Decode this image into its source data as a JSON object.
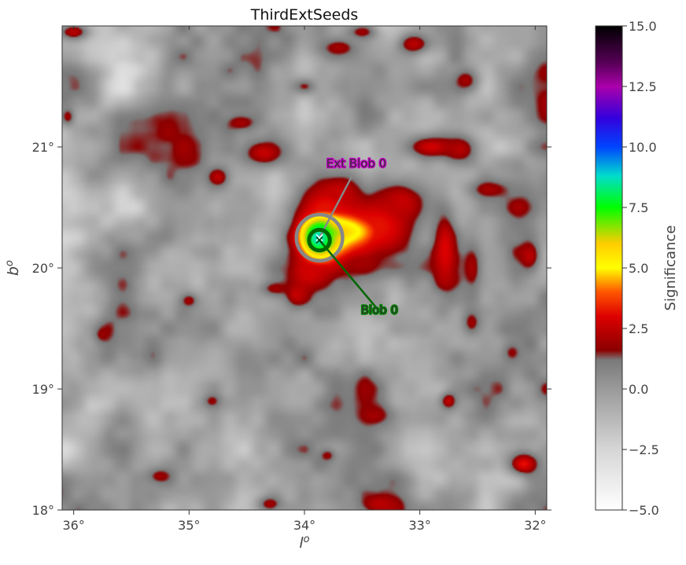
{
  "chart_data": {
    "type": "heatmap",
    "title": "ThirdExtSeeds",
    "xlabel": "l",
    "xlabel_sup": "o",
    "ylabel": "b",
    "ylabel_sup": "o",
    "x_direction": "decreasing",
    "xlim": [
      36.1,
      31.9
    ],
    "ylim": [
      18.0,
      22.0
    ],
    "x_ticks": [
      {
        "value": 36,
        "label": "36°"
      },
      {
        "value": 35,
        "label": "35°"
      },
      {
        "value": 34,
        "label": "34°"
      },
      {
        "value": 33,
        "label": "33°"
      },
      {
        "value": 32,
        "label": "32°"
      }
    ],
    "y_ticks": [
      {
        "value": 18,
        "label": "18°"
      },
      {
        "value": 19,
        "label": "19°"
      },
      {
        "value": 20,
        "label": "20°"
      },
      {
        "value": 21,
        "label": "21°"
      }
    ],
    "colorbar": {
      "label": "Significance",
      "range": [
        -5.0,
        15.0
      ],
      "ticks": [
        {
          "value": 15.0,
          "label": "15.0"
        },
        {
          "value": 12.5,
          "label": "12.5"
        },
        {
          "value": 10.0,
          "label": "10.0"
        },
        {
          "value": 7.5,
          "label": "7.5"
        },
        {
          "value": 5.0,
          "label": "5.0"
        },
        {
          "value": 2.5,
          "label": "2.5"
        },
        {
          "value": 0.0,
          "label": "0.0"
        },
        {
          "value": -2.5,
          "label": "−2.5"
        },
        {
          "value": -5.0,
          "label": "−5.0"
        }
      ],
      "colormap": [
        {
          "value": -5.0,
          "color": "#ffffff"
        },
        {
          "value": -2.5,
          "color": "#d6d6d6"
        },
        {
          "value": 0.0,
          "color": "#9a9a9a"
        },
        {
          "value": 1.2,
          "color": "#7a7a7a"
        },
        {
          "value": 1.6,
          "color": "#8b0000"
        },
        {
          "value": 3.0,
          "color": "#dd0000"
        },
        {
          "value": 4.0,
          "color": "#ff5500"
        },
        {
          "value": 5.0,
          "color": "#ffff00"
        },
        {
          "value": 6.0,
          "color": "#ffcc00"
        },
        {
          "value": 7.5,
          "color": "#00ff00"
        },
        {
          "value": 8.8,
          "color": "#00ddcc"
        },
        {
          "value": 10.0,
          "color": "#0044ff"
        },
        {
          "value": 11.2,
          "color": "#3300dd"
        },
        {
          "value": 12.5,
          "color": "#aa00aa"
        },
        {
          "value": 13.5,
          "color": "#550055"
        },
        {
          "value": 15.0,
          "color": "#000000"
        }
      ]
    },
    "sources": [
      {
        "name": "Ext Blob 0",
        "l": 33.87,
        "b": 20.25,
        "radius_deg": 0.2,
        "label_l": 33.55,
        "label_b": 20.83,
        "ring_color": "#888888",
        "label_color": "#cc00cc"
      },
      {
        "name": "Blob 0",
        "l": 33.87,
        "b": 20.23,
        "radius_deg": 0.09,
        "label_l": 33.35,
        "label_b": 19.62,
        "ring_color": "#006600",
        "label_color": "#008800"
      }
    ],
    "hotspots": [
      {
        "l": 33.68,
        "b": 20.3,
        "peak": 5.8,
        "sl": 0.27,
        "sb": 0.12
      },
      {
        "l": 33.8,
        "b": 20.28,
        "peak": 5.2,
        "sl": 0.16,
        "sb": 0.15
      },
      {
        "l": 33.88,
        "b": 20.25,
        "peak": 8.8,
        "sl": 0.1,
        "sb": 0.11
      },
      {
        "l": 33.82,
        "b": 20.5,
        "peak": 3.2,
        "sl": 0.2,
        "sb": 0.17
      },
      {
        "l": 33.35,
        "b": 20.35,
        "peak": 3.2,
        "sl": 0.22,
        "sb": 0.18
      },
      {
        "l": 33.15,
        "b": 20.55,
        "peak": 2.6,
        "sl": 0.15,
        "sb": 0.12
      },
      {
        "l": 33.7,
        "b": 20.62,
        "peak": 2.6,
        "sl": 0.15,
        "sb": 0.12
      },
      {
        "l": 33.95,
        "b": 19.95,
        "peak": 2.8,
        "sl": 0.14,
        "sb": 0.1
      },
      {
        "l": 34.07,
        "b": 19.78,
        "peak": 2.6,
        "sl": 0.07,
        "sb": 0.07
      },
      {
        "l": 33.5,
        "b": 20.05,
        "peak": 2.0,
        "sl": 0.12,
        "sb": 0.1
      },
      {
        "l": 32.9,
        "b": 21.0,
        "peak": 2.8,
        "sl": 0.18,
        "sb": 0.08
      },
      {
        "l": 32.65,
        "b": 20.98,
        "peak": 2.3,
        "sl": 0.1,
        "sb": 0.08
      },
      {
        "l": 32.4,
        "b": 20.65,
        "peak": 2.0,
        "sl": 0.13,
        "sb": 0.06
      },
      {
        "l": 32.78,
        "b": 20.15,
        "peak": 3.0,
        "sl": 0.08,
        "sb": 0.25
      },
      {
        "l": 32.55,
        "b": 20.0,
        "peak": 2.0,
        "sl": 0.06,
        "sb": 0.15
      },
      {
        "l": 34.35,
        "b": 20.95,
        "peak": 2.6,
        "sl": 0.13,
        "sb": 0.08
      },
      {
        "l": 34.75,
        "b": 20.75,
        "peak": 2.4,
        "sl": 0.08,
        "sb": 0.07
      },
      {
        "l": 34.55,
        "b": 21.2,
        "peak": 2.0,
        "sl": 0.1,
        "sb": 0.05
      },
      {
        "l": 33.05,
        "b": 21.85,
        "peak": 2.4,
        "sl": 0.1,
        "sb": 0.06
      },
      {
        "l": 33.7,
        "b": 21.82,
        "peak": 2.0,
        "sl": 0.12,
        "sb": 0.06
      },
      {
        "l": 33.5,
        "b": 21.95,
        "peak": 1.9,
        "sl": 0.1,
        "sb": 0.05
      },
      {
        "l": 32.6,
        "b": 21.55,
        "peak": 2.0,
        "sl": 0.08,
        "sb": 0.07
      },
      {
        "l": 32.05,
        "b": 20.1,
        "peak": 2.4,
        "sl": 0.06,
        "sb": 0.08
      },
      {
        "l": 32.75,
        "b": 18.9,
        "peak": 2.5,
        "sl": 0.05,
        "sb": 0.05
      },
      {
        "l": 32.1,
        "b": 18.38,
        "peak": 3.2,
        "sl": 0.1,
        "sb": 0.07
      },
      {
        "l": 33.35,
        "b": 18.05,
        "peak": 2.4,
        "sl": 0.12,
        "sb": 0.06
      },
      {
        "l": 34.3,
        "b": 18.05,
        "peak": 2.0,
        "sl": 0.08,
        "sb": 0.05
      },
      {
        "l": 36.0,
        "b": 21.95,
        "peak": 2.4,
        "sl": 0.1,
        "sb": 0.05
      },
      {
        "l": 35.0,
        "b": 19.73,
        "peak": 2.0,
        "sl": 0.05,
        "sb": 0.04
      },
      {
        "l": 34.25,
        "b": 19.83,
        "peak": 1.9,
        "sl": 0.1,
        "sb": 0.05
      },
      {
        "l": 33.4,
        "b": 18.78,
        "peak": 2.0,
        "sl": 0.12,
        "sb": 0.07
      },
      {
        "l": 32.55,
        "b": 19.55,
        "peak": 1.9,
        "sl": 0.06,
        "sb": 0.08
      },
      {
        "l": 34.8,
        "b": 18.9,
        "peak": 1.8,
        "sl": 0.05,
        "sb": 0.04
      },
      {
        "l": 35.75,
        "b": 19.45,
        "peak": 1.8,
        "sl": 0.05,
        "sb": 0.05
      },
      {
        "l": 35.25,
        "b": 18.28,
        "peak": 1.9,
        "sl": 0.08,
        "sb": 0.05
      },
      {
        "l": 33.8,
        "b": 18.45,
        "peak": 1.8,
        "sl": 0.05,
        "sb": 0.04
      },
      {
        "l": 36.05,
        "b": 21.25,
        "peak": 1.9,
        "sl": 0.04,
        "sb": 0.05
      },
      {
        "l": 32.2,
        "b": 19.3,
        "peak": 1.7,
        "sl": 0.05,
        "sb": 0.05
      },
      {
        "l": 34.0,
        "b": 21.5,
        "peak": 1.6,
        "sl": 0.08,
        "sb": 0.05
      }
    ]
  }
}
